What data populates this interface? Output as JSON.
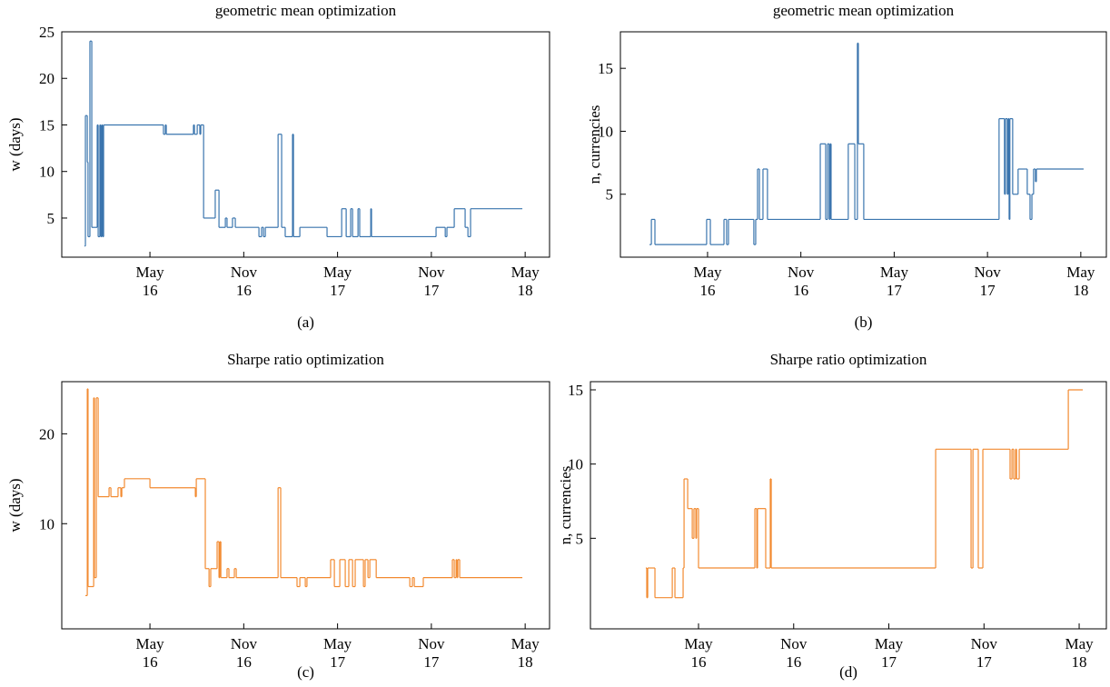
{
  "chart_data": [
    {
      "type": "line",
      "step": "post",
      "title": "geometric mean optimization",
      "caption": "(a)",
      "ylabel": "w (days)",
      "color": "#3a75ae",
      "x": [
        2015.981,
        2015.986,
        2015.996,
        2016.0,
        2016.01,
        2016.02,
        2016.039,
        2016.049,
        2016.054,
        2016.063,
        2016.068,
        2016.073,
        2016.078,
        2016.083,
        2016.402,
        2016.412,
        2016.417,
        2016.562,
        2016.567,
        2016.582,
        2016.596,
        2016.601,
        2016.616,
        2016.678,
        2016.698,
        2016.732,
        2016.741,
        2016.77,
        2016.785,
        2016.911,
        2016.925,
        2016.935,
        2016.945,
        2017.013,
        2017.032,
        2017.051,
        2017.09,
        2017.095,
        2017.129,
        2017.274,
        2017.352,
        2017.376,
        2017.4,
        2017.41,
        2017.439,
        2017.448,
        2017.507,
        2017.511,
        2017.855,
        2017.904,
        2017.913,
        2017.952,
        2018.01,
        2018.025,
        2018.039,
        2018.315
      ],
      "values": [
        2,
        16,
        11,
        3,
        24,
        4,
        4,
        15,
        3,
        15,
        3,
        15,
        3,
        15,
        14,
        15,
        14,
        15,
        14,
        15,
        14,
        15,
        5,
        8,
        4,
        5,
        4,
        5,
        4,
        3,
        4,
        3,
        4,
        14,
        4,
        3,
        14,
        3,
        4,
        3,
        6,
        3,
        6,
        3,
        6,
        3,
        6,
        3,
        4,
        3,
        4,
        6,
        4,
        3,
        6,
        6
      ],
      "xlim": [
        2015.86,
        2018.46
      ],
      "ylim": [
        0.8,
        25
      ],
      "xticks": [
        {
          "value": 2016.33,
          "label": "May 16"
        },
        {
          "value": 2016.83,
          "label": "Nov 16"
        },
        {
          "value": 2017.33,
          "label": "May 17"
        },
        {
          "value": 2017.83,
          "label": "Nov 17"
        },
        {
          "value": 2018.33,
          "label": "May 18"
        }
      ],
      "yticks": [
        5,
        10,
        15,
        20,
        25
      ]
    },
    {
      "type": "line",
      "step": "post",
      "title": "geometric mean optimization",
      "caption": "(b)",
      "ylabel": "n, currencies",
      "color": "#3a75ae",
      "x": [
        2016.019,
        2016.029,
        2016.048,
        2016.325,
        2016.345,
        2016.418,
        2016.432,
        2016.442,
        2016.578,
        2016.588,
        2016.598,
        2016.608,
        2016.627,
        2016.651,
        2016.934,
        2016.963,
        2016.973,
        2016.982,
        2016.987,
        2016.992,
        2017.084,
        2017.119,
        2017.133,
        2017.138,
        2017.167,
        2017.892,
        2017.921,
        2017.926,
        2017.936,
        2017.941,
        2017.946,
        2017.95,
        2017.965,
        2017.994,
        2018.043,
        2018.058,
        2018.068,
        2018.077,
        2018.087,
        2018.092,
        2018.345
      ],
      "values": [
        1,
        3,
        1,
        3,
        1,
        3,
        1,
        3,
        1,
        3,
        7,
        3,
        7,
        3,
        9,
        3,
        9,
        3,
        9,
        3,
        9,
        3,
        17,
        9,
        3,
        11,
        5,
        11,
        5,
        11,
        3,
        11,
        5,
        7,
        5,
        3,
        5,
        7,
        6,
        7,
        7
      ],
      "xlim": [
        2015.863,
        2018.467
      ],
      "ylim": [
        0,
        17.9
      ],
      "xticks": [
        {
          "value": 2016.33,
          "label": "May 16"
        },
        {
          "value": 2016.83,
          "label": "Nov 16"
        },
        {
          "value": 2017.33,
          "label": "May 17"
        },
        {
          "value": 2017.83,
          "label": "Nov 17"
        },
        {
          "value": 2018.33,
          "label": "May 18"
        }
      ],
      "yticks": [
        5,
        10,
        15
      ]
    },
    {
      "type": "line",
      "step": "post",
      "title": "Sharpe ratio optimization",
      "caption": "(c)",
      "ylabel": "w (days)",
      "color": "#f28a30",
      "x": [
        2015.986,
        2015.996,
        2016.0,
        2016.03,
        2016.034,
        2016.044,
        2016.054,
        2016.112,
        2016.122,
        2016.16,
        2016.175,
        2016.18,
        2016.194,
        2016.33,
        2016.572,
        2016.577,
        2016.625,
        2016.645,
        2016.654,
        2016.688,
        2016.698,
        2016.703,
        2016.708,
        2016.741,
        2016.751,
        2016.78,
        2016.79,
        2017.013,
        2017.027,
        2017.114,
        2017.129,
        2017.158,
        2017.167,
        2017.293,
        2017.313,
        2017.342,
        2017.371,
        2017.39,
        2017.41,
        2017.424,
        2017.468,
        2017.477,
        2017.492,
        2017.502,
        2017.536,
        2017.715,
        2017.729,
        2017.739,
        2017.787,
        2017.942,
        2017.952,
        2017.962,
        2017.967,
        2017.971,
        2017.981,
        2018.315
      ],
      "values": [
        2,
        25,
        3,
        24,
        4,
        24,
        13,
        14,
        13,
        14,
        13,
        14,
        15,
        14,
        13,
        15,
        5,
        3,
        5,
        8,
        4,
        8,
        4,
        5,
        4,
        5,
        4,
        14,
        4,
        3,
        4,
        3,
        4,
        6,
        3,
        6,
        3,
        6,
        3,
        6,
        3,
        6,
        4,
        6,
        4,
        3,
        4,
        3,
        4,
        6,
        4,
        6,
        4,
        6,
        4,
        4
      ],
      "xlim": [
        2015.86,
        2018.46
      ],
      "ylim": [
        -1.7,
        25.8
      ],
      "xticks": [
        {
          "value": 2016.33,
          "label": "May 16"
        },
        {
          "value": 2016.83,
          "label": "Nov 16"
        },
        {
          "value": 2017.33,
          "label": "May 17"
        },
        {
          "value": 2017.83,
          "label": "Nov 17"
        },
        {
          "value": 2018.33,
          "label": "May 18"
        }
      ],
      "yticks": [
        10,
        20
      ]
    },
    {
      "type": "line",
      "step": "post",
      "title": "Sharpe ratio optimization",
      "caption": "(d)",
      "ylabel": "n, currencies",
      "color": "#f28a30",
      "x": [
        2016.053,
        2016.058,
        2016.063,
        2016.101,
        2016.192,
        2016.206,
        2016.249,
        2016.254,
        2016.273,
        2016.297,
        2016.306,
        2016.316,
        2016.32,
        2016.33,
        2016.626,
        2016.636,
        2016.64,
        2016.683,
        2016.707,
        2016.712,
        2017.576,
        2017.762,
        2017.772,
        2017.8,
        2017.824,
        2017.967,
        2017.977,
        2017.986,
        2017.996,
        2018.001,
        2018.015,
        2018.273,
        2018.349
      ],
      "values": [
        3,
        1,
        3,
        1,
        3,
        1,
        3,
        9,
        7,
        5,
        7,
        5,
        7,
        3,
        7,
        3,
        7,
        3,
        9,
        3,
        11,
        3,
        11,
        3,
        11,
        9,
        11,
        9,
        11,
        9,
        11,
        15,
        15
      ],
      "xlim": [
        2015.762,
        2018.473
      ],
      "ylim": [
        -1.1,
        15.55
      ],
      "xticks": [
        {
          "value": 2016.33,
          "label": "May 16"
        },
        {
          "value": 2016.83,
          "label": "Nov 16"
        },
        {
          "value": 2017.33,
          "label": "May 17"
        },
        {
          "value": 2017.83,
          "label": "Nov 17"
        },
        {
          "value": 2018.33,
          "label": "May 18"
        }
      ],
      "yticks": [
        5,
        10,
        15
      ]
    }
  ]
}
